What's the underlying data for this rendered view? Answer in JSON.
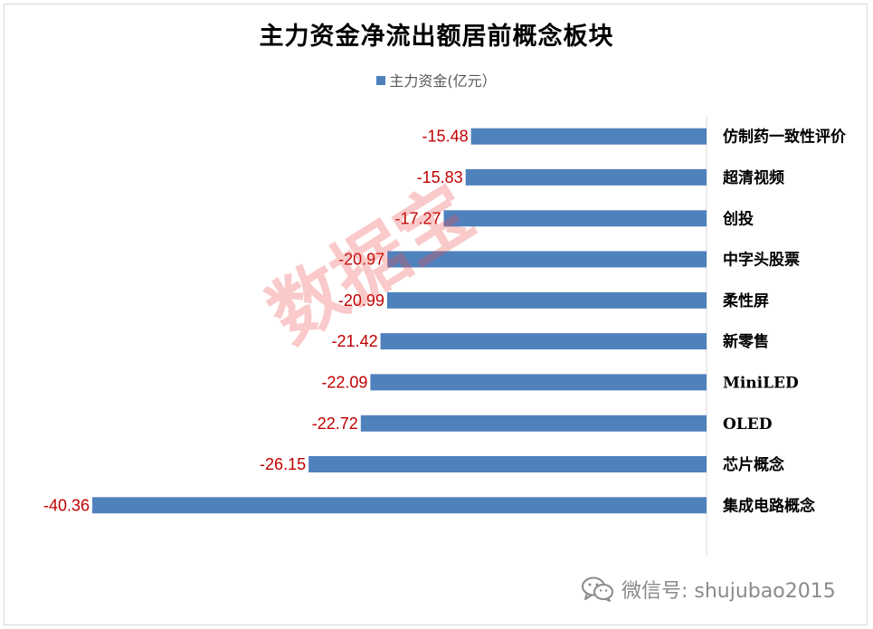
{
  "title": "主力资金净流出额居前概念板块",
  "legend_label": "主力资金(亿元）",
  "watermark": "数据宝",
  "wechat": {
    "label": "微信号: shujubao2015",
    "icon": "wechat-icon"
  },
  "colors": {
    "bar": "#4f81bd",
    "value_label": "#c00000",
    "axis": "#d9d9d9",
    "watermark": "#f05050"
  },
  "chart_data": {
    "type": "bar",
    "orientation": "horizontal",
    "title": "主力资金净流出额居前概念板块",
    "categories": [
      "仿制药一致性评价",
      "超清视频",
      "创投",
      "中字头股票",
      "柔性屏",
      "新零售",
      "MiniLED",
      "OLED",
      "芯片概念",
      "集成电路概念"
    ],
    "series": [
      {
        "name": "主力资金(亿元）",
        "values": [
          -15.48,
          -15.83,
          -17.27,
          -20.97,
          -20.99,
          -21.42,
          -22.09,
          -22.72,
          -26.15,
          -40.36
        ]
      }
    ],
    "value_labels": [
      "-15.48",
      "-15.83",
      "-17.27",
      "-20.97",
      "-20.99",
      "-21.42",
      "-22.09",
      "-22.72",
      "-26.15",
      "-40.36"
    ],
    "xlim": [
      -40.36,
      0
    ],
    "grid": false,
    "legend_position": "top"
  }
}
